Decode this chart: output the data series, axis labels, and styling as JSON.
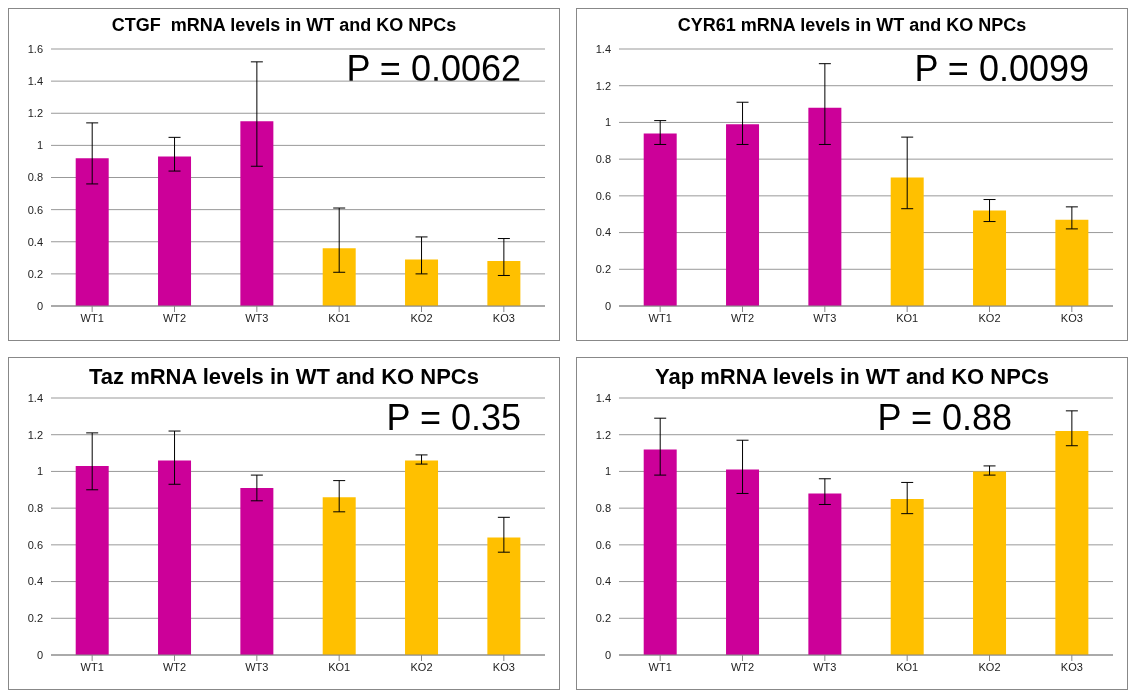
{
  "chart_data": [
    {
      "type": "bar",
      "title": "CTGF  mRNA levels in WT and KO NPCs",
      "categories": [
        "WT1",
        "WT2",
        "WT3",
        "KO1",
        "KO2",
        "KO3"
      ],
      "values": [
        0.92,
        0.93,
        1.15,
        0.36,
        0.29,
        0.28
      ],
      "colors": [
        "#cc0099",
        "#cc0099",
        "#cc0099",
        "#ffc000",
        "#ffc000",
        "#ffc000"
      ],
      "errors": [
        [
          0.76,
          1.14
        ],
        [
          0.84,
          1.05
        ],
        [
          0.87,
          1.52
        ],
        [
          0.21,
          0.61
        ],
        [
          0.2,
          0.43
        ],
        [
          0.19,
          0.42
        ]
      ],
      "ylim": [
        0,
        1.6
      ],
      "yticks": [
        0,
        0.2,
        0.4,
        0.6,
        0.8,
        1,
        1.2,
        1.4,
        1.6
      ],
      "grid": "y",
      "annotations": [
        "P = 0.0062"
      ]
    },
    {
      "type": "bar",
      "title": "CYR61 mRNA levels in WT and KO NPCs",
      "categories": [
        "WT1",
        "WT2",
        "WT3",
        "KO1",
        "KO2",
        "KO3"
      ],
      "values": [
        0.94,
        0.99,
        1.08,
        0.7,
        0.52,
        0.47
      ],
      "colors": [
        "#cc0099",
        "#cc0099",
        "#cc0099",
        "#ffc000",
        "#ffc000",
        "#ffc000"
      ],
      "errors": [
        [
          0.88,
          1.01
        ],
        [
          0.88,
          1.11
        ],
        [
          0.88,
          1.32
        ],
        [
          0.53,
          0.92
        ],
        [
          0.46,
          0.58
        ],
        [
          0.42,
          0.54
        ]
      ],
      "ylim": [
        0,
        1.4
      ],
      "yticks": [
        0,
        0.2,
        0.4,
        0.6,
        0.8,
        1,
        1.2,
        1.4
      ],
      "grid": "y",
      "annotations": [
        "P = 0.0099"
      ]
    },
    {
      "type": "bar",
      "title": "Taz mRNA levels in WT and KO NPCs",
      "categories": [
        "WT1",
        "WT2",
        "WT3",
        "KO1",
        "KO2",
        "KO3"
      ],
      "values": [
        1.03,
        1.06,
        0.91,
        0.86,
        1.06,
        0.64
      ],
      "colors": [
        "#cc0099",
        "#cc0099",
        "#cc0099",
        "#ffc000",
        "#ffc000",
        "#ffc000"
      ],
      "errors": [
        [
          0.9,
          1.21
        ],
        [
          0.93,
          1.22
        ],
        [
          0.84,
          0.98
        ],
        [
          0.78,
          0.95
        ],
        [
          1.04,
          1.09
        ],
        [
          0.56,
          0.75
        ]
      ],
      "ylim": [
        0,
        1.4
      ],
      "yticks": [
        0,
        0.2,
        0.4,
        0.6,
        0.8,
        1,
        1.2,
        1.4
      ],
      "grid": "y",
      "annotations": [
        "P = 0.35"
      ]
    },
    {
      "type": "bar",
      "title": "Yap mRNA levels in WT and KO NPCs",
      "categories": [
        "WT1",
        "WT2",
        "WT3",
        "KO1",
        "KO2",
        "KO3"
      ],
      "values": [
        1.12,
        1.01,
        0.88,
        0.85,
        1.0,
        1.22
      ],
      "colors": [
        "#cc0099",
        "#cc0099",
        "#cc0099",
        "#ffc000",
        "#ffc000",
        "#ffc000"
      ],
      "errors": [
        [
          0.98,
          1.29
        ],
        [
          0.88,
          1.17
        ],
        [
          0.82,
          0.96
        ],
        [
          0.77,
          0.94
        ],
        [
          0.98,
          1.03
        ],
        [
          1.14,
          1.33
        ]
      ],
      "ylim": [
        0,
        1.4
      ],
      "yticks": [
        0,
        0.2,
        0.4,
        0.6,
        0.8,
        1,
        1.2,
        1.4
      ],
      "grid": "y",
      "annotations": [
        "P = 0.88"
      ]
    }
  ]
}
